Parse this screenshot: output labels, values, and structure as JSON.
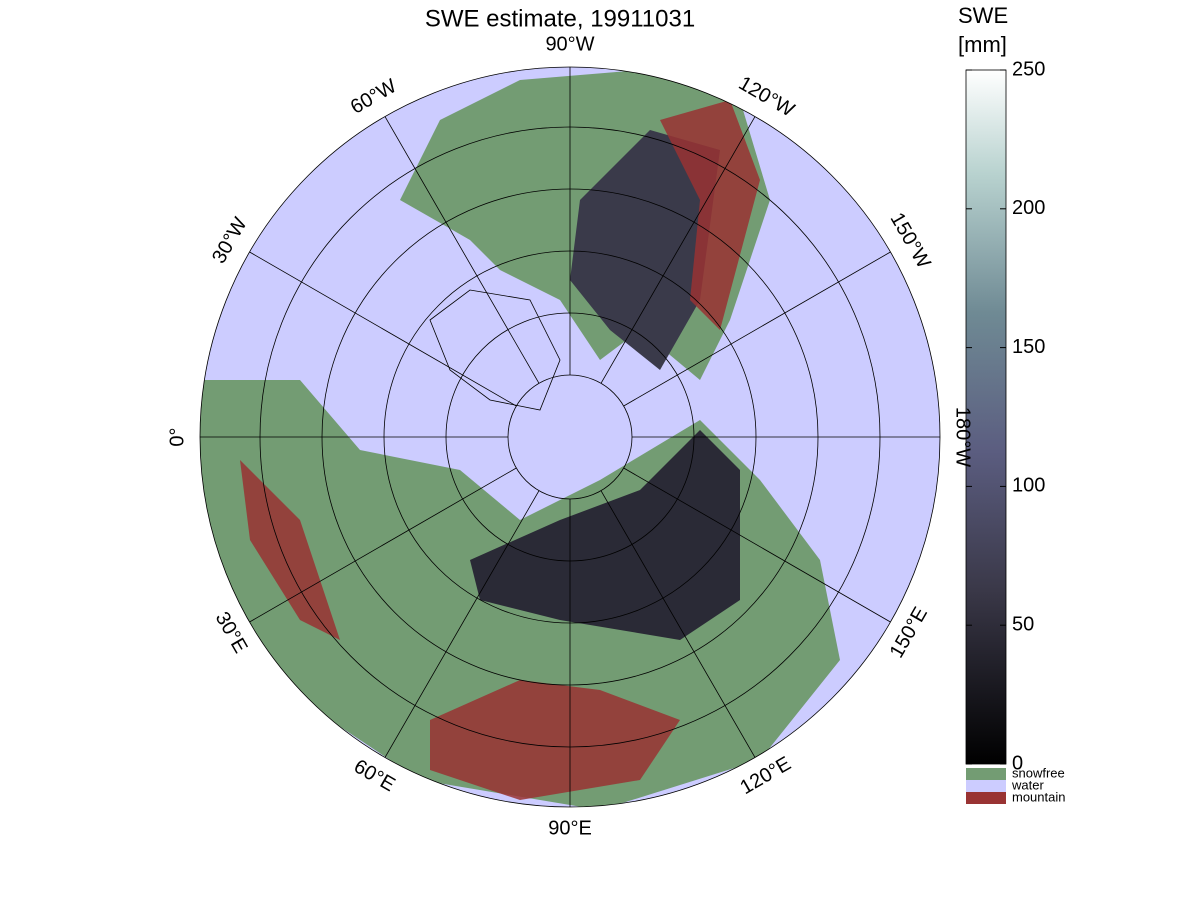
{
  "title": "SWE estimate, 19911031",
  "map": {
    "longitude_ticks": [
      {
        "value": -90,
        "label": "90°W"
      },
      {
        "value": -120,
        "label": "120°W"
      },
      {
        "value": -150,
        "label": "150°W"
      },
      {
        "value": 180,
        "label": "180°W"
      },
      {
        "value": 150,
        "label": "150°E"
      },
      {
        "value": 120,
        "label": "120°E"
      },
      {
        "value": 90,
        "label": "90°E"
      },
      {
        "value": 60,
        "label": "60°E"
      },
      {
        "value": 30,
        "label": "30°E"
      },
      {
        "value": 0,
        "label": "0°"
      },
      {
        "value": -30,
        "label": "30°W"
      },
      {
        "value": -60,
        "label": "60°W"
      }
    ]
  },
  "colorbar": {
    "title": [
      "SWE",
      "[mm]"
    ],
    "lim": [
      0,
      250
    ],
    "ticks": [
      0,
      50,
      100,
      150,
      200,
      250
    ],
    "classes": [
      {
        "name": "snowfree",
        "color": "#739c73"
      },
      {
        "name": "water",
        "color": "#ccccff"
      },
      {
        "name": "mountain",
        "color": "#993333"
      }
    ]
  }
}
